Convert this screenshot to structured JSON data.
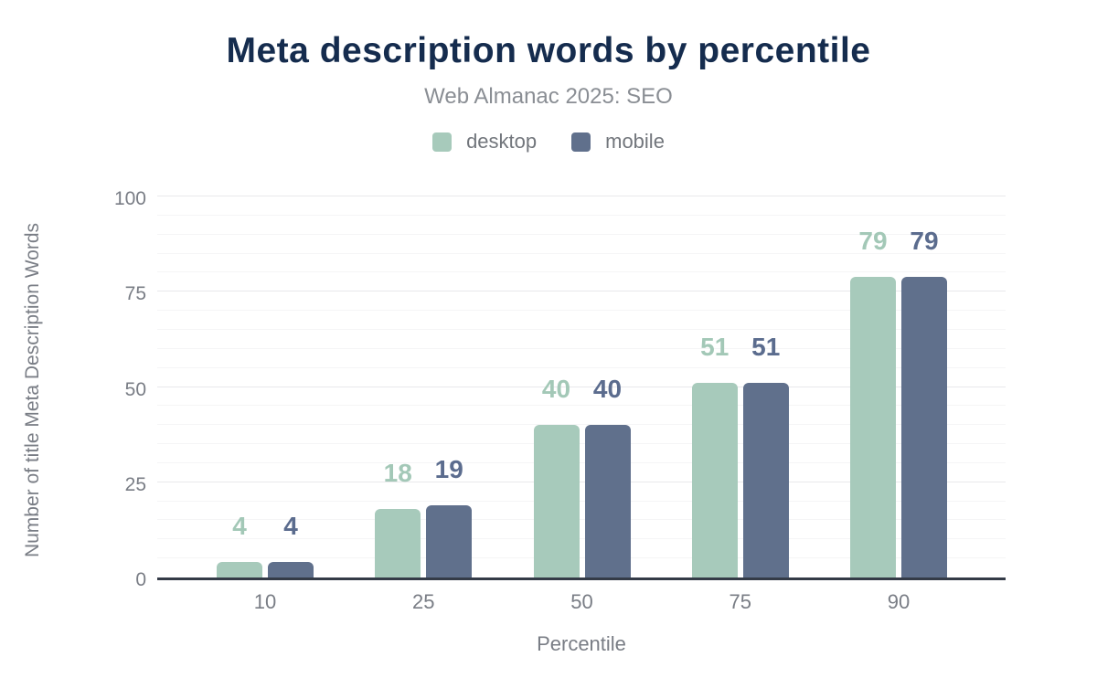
{
  "header": {
    "title": "Meta description words by percentile",
    "subtitle": "Web Almanac 2025: SEO"
  },
  "legend": {
    "items": [
      {
        "label": "desktop",
        "color": "#a7cabb"
      },
      {
        "label": "mobile",
        "color": "#60708c"
      }
    ]
  },
  "axes": {
    "x_title": "Percentile",
    "y_title": "Number of title Meta Description Words"
  },
  "colors": {
    "title": "#152c4e",
    "subtitle": "#8a8e94",
    "tick_text": "#797d85",
    "axis_line": "#343b47",
    "major_gridline": "#e8e8eb",
    "minor_gridline": "#f5f5f6",
    "desktop": "#a7cabb",
    "mobile": "#60708c",
    "desktop_label": "#a3c8b7",
    "mobile_label": "#5b6c8e"
  },
  "chart_data": {
    "type": "bar",
    "title": "Meta description words by percentile",
    "subtitle": "Web Almanac 2025: SEO",
    "categories": [
      "10",
      "25",
      "50",
      "75",
      "90"
    ],
    "series": [
      {
        "name": "desktop",
        "color": "#a7cabb",
        "label_color": "#a3c8b7",
        "values": [
          4,
          18,
          40,
          51,
          79
        ]
      },
      {
        "name": "mobile",
        "color": "#60708c",
        "label_color": "#5b6c8e",
        "values": [
          4,
          19,
          40,
          51,
          79
        ]
      }
    ],
    "xlabel": "Percentile",
    "ylabel": "Number of title Meta Description Words",
    "ylim": [
      0,
      100
    ],
    "yticks": [
      0,
      25,
      50,
      75,
      100
    ],
    "minor_grid_step": 5,
    "major_grid_step": 25,
    "grid": true,
    "legend_position": "top",
    "data_labels": true
  }
}
